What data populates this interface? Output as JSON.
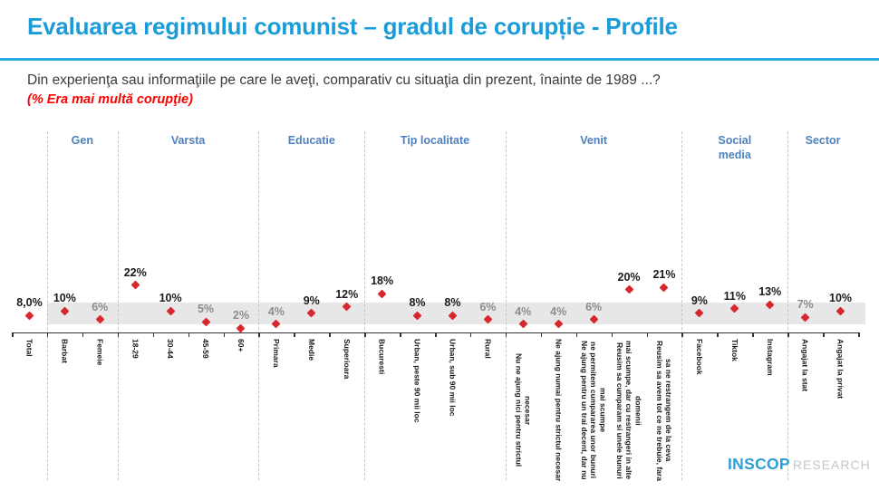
{
  "header": {
    "title": "Evaluarea regimului comunist – gradul de corupție - Profile",
    "question": "Din experienţa sau informaţiile pe care le aveţi, comparativ cu situaţia din prezent, înainte de 1989 ...?",
    "note": "(% Era mai multă corupţie)"
  },
  "chart_data": {
    "type": "scatter",
    "title": "Evaluarea regimului comunist – gradul de corupție - Profile",
    "metric": "% Era mai multă corupţie",
    "ylim": [
      0,
      95
    ],
    "grid": false,
    "marker_color": "#D7282F",
    "band": {
      "min": 3.8,
      "max": 14,
      "color": "#E7E7E7"
    },
    "groups": [
      {
        "label": "",
        "categories": [
          {
            "label": "Total",
            "value": 8,
            "display": "8,0%",
            "muted": false
          }
        ]
      },
      {
        "label": "Gen",
        "categories": [
          {
            "label": "Barbat",
            "value": 10,
            "display": "10%",
            "muted": false
          },
          {
            "label": "Femeie",
            "value": 6,
            "display": "6%",
            "muted": true
          }
        ]
      },
      {
        "label": "Varsta",
        "categories": [
          {
            "label": "18-29",
            "value": 22,
            "display": "22%",
            "muted": false
          },
          {
            "label": "30-44",
            "value": 10,
            "display": "10%",
            "muted": false
          },
          {
            "label": "45-59",
            "value": 5,
            "display": "5%",
            "muted": true
          },
          {
            "label": "60+",
            "value": 2,
            "display": "2%",
            "muted": true
          }
        ]
      },
      {
        "label": "Educatie",
        "categories": [
          {
            "label": "Primara",
            "value": 4,
            "display": "4%",
            "muted": true
          },
          {
            "label": "Medie",
            "value": 9,
            "display": "9%",
            "muted": false
          },
          {
            "label": "Superioara",
            "value": 12,
            "display": "12%",
            "muted": false
          }
        ]
      },
      {
        "label": "Tip localitate",
        "categories": [
          {
            "label": "Bucuresti",
            "value": 18,
            "display": "18%",
            "muted": false
          },
          {
            "label": "Urban, peste 90 mii loc",
            "value": 8,
            "display": "8%",
            "muted": false
          },
          {
            "label": "Urban, sub 90 mii loc",
            "value": 8,
            "display": "8%",
            "muted": false
          },
          {
            "label": "Rural",
            "value": 6,
            "display": "6%",
            "muted": true
          }
        ]
      },
      {
        "label": "Venit",
        "categories": [
          {
            "label": "Nu ne ajung nici pentru strictul necesar",
            "value": 4,
            "display": "4%",
            "muted": true
          },
          {
            "label": "Ne ajung numai pentru strictul necesar",
            "value": 4,
            "display": "4%",
            "muted": true
          },
          {
            "label": "Ne ajung pentru un trai decent, dar nu ne permitem cumpararea unor bunuri mai scumpe",
            "value": 6,
            "display": "6%",
            "muted": true
          },
          {
            "label": "Reusim sa cumparam si unele bunuri mai scumpe, dar cu restrangeri in alte domenii",
            "value": 20,
            "display": "20%",
            "muted": false
          },
          {
            "label": "Reusim sa avem tot ce ne trebuie, fara sa ne restrangem de la ceva",
            "value": 21,
            "display": "21%",
            "muted": false
          }
        ]
      },
      {
        "label": "Social media",
        "two_line": true,
        "categories": [
          {
            "label": "Facebook",
            "value": 9,
            "display": "9%",
            "muted": false
          },
          {
            "label": "Tiktok",
            "value": 11,
            "display": "11%",
            "muted": false
          },
          {
            "label": "Instagram",
            "value": 13,
            "display": "13%",
            "muted": false
          }
        ]
      },
      {
        "label": "Sector",
        "categories": [
          {
            "label": "Angajat la stat",
            "value": 7,
            "display": "7%",
            "muted": true
          },
          {
            "label": "Angajat la privat",
            "value": 10,
            "display": "10%",
            "muted": false
          }
        ]
      }
    ]
  },
  "footer": {
    "brand": "INSCOP",
    "brand_suffix": "RESEARCH"
  },
  "colors": {
    "title_blue": "#1B9CD8",
    "rule_blue": "#29ABE2",
    "group_label_blue": "#4F81BD",
    "value_black": "#1A1A1A",
    "value_gray": "#8C8C8C",
    "note_red": "#FF0000",
    "marker_red": "#D7282F",
    "band_gray": "#E7E7E7"
  }
}
